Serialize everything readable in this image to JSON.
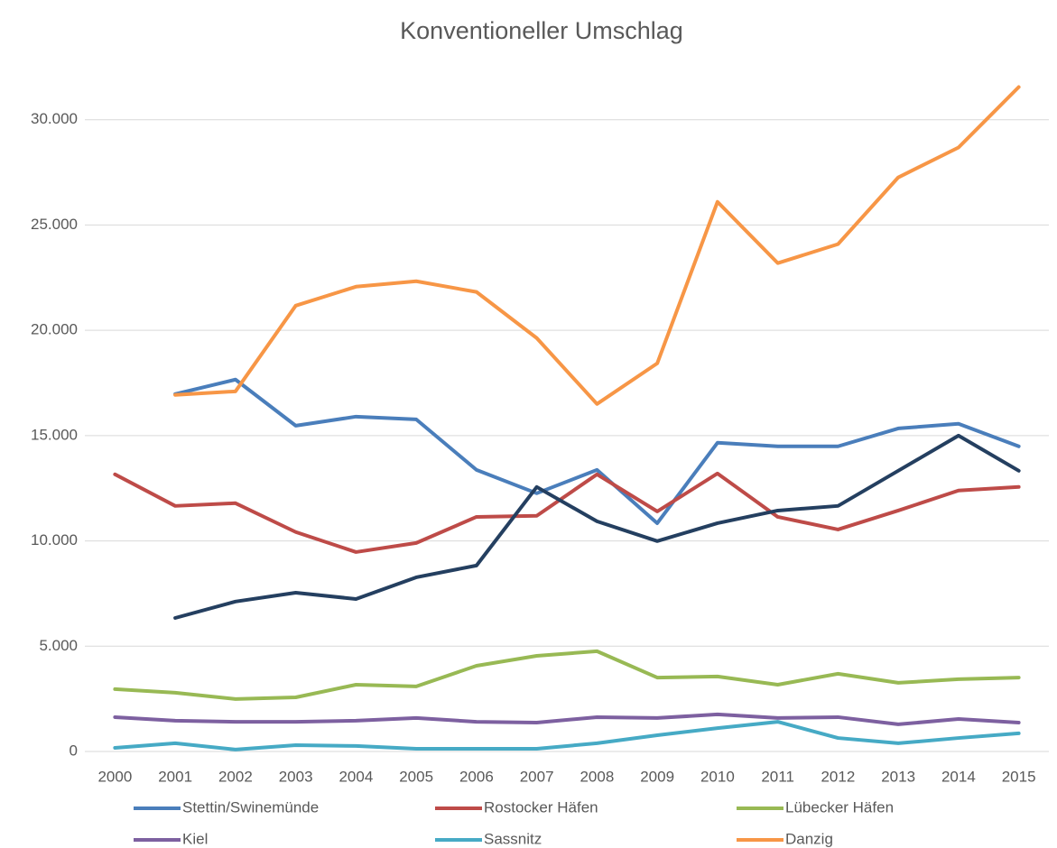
{
  "chart_data": {
    "type": "line",
    "title": "Konventioneller Umschlag",
    "categories": [
      "2000",
      "2001",
      "2002",
      "2003",
      "2004",
      "2005",
      "2006",
      "2007",
      "2008",
      "2009",
      "2010",
      "2011",
      "2012",
      "2013",
      "2014",
      "2015"
    ],
    "ylim": [
      0,
      32000
    ],
    "yticks": [
      0,
      {
        "value": 5000,
        "label": "5.000"
      },
      {
        "value": 10000,
        "label": "10.000"
      },
      {
        "value": 15000,
        "label": "15.000"
      },
      {
        "value": 20000,
        "label": "20.000"
      },
      {
        "value": 25000,
        "label": "25.000"
      },
      {
        "value": 30000,
        "label": "30.000"
      }
    ],
    "grid": true,
    "legend": "bottom",
    "series": [
      {
        "name": "Stettin/Swinemünde",
        "color": "#4a7ebb",
        "values": [
          null,
          16970,
          17660,
          15470,
          15900,
          15770,
          13370,
          12260,
          13370,
          10840,
          14660,
          14490,
          14490,
          15340,
          15560,
          14490
        ]
      },
      {
        "name": "Rostocker Häfen",
        "color": "#be4b48",
        "values": [
          13160,
          11660,
          11790,
          10420,
          9470,
          9900,
          11140,
          11190,
          13160,
          11400,
          13200,
          11140,
          10540,
          11440,
          12390,
          12560
        ]
      },
      {
        "name": "Lübecker Häfen",
        "color": "#98b954",
        "values": [
          2960,
          2790,
          2490,
          2570,
          3170,
          3090,
          4070,
          4540,
          4760,
          3510,
          3560,
          3170,
          3690,
          3260,
          3430,
          3510
        ]
      },
      {
        "name": "Kiel",
        "color": "#7d60a0",
        "values": [
          1630,
          1460,
          1410,
          1410,
          1460,
          1590,
          1410,
          1370,
          1630,
          1590,
          1760,
          1590,
          1630,
          1290,
          1540,
          1370
        ]
      },
      {
        "name": "Sassnitz",
        "color": "#46aac5",
        "values": [
          170,
          390,
          90,
          300,
          260,
          130,
          130,
          130,
          390,
          770,
          1110,
          1410,
          640,
          390,
          640,
          860
        ]
      },
      {
        "name": "Danzig",
        "color": "#f79646",
        "values": [
          null,
          16930,
          17100,
          21170,
          22070,
          22330,
          21820,
          19630,
          16500,
          18430,
          26100,
          23190,
          24090,
          27260,
          28680,
          31550
        ]
      },
      {
        "name": null,
        "color": "#243f60",
        "values": [
          null,
          6340,
          7120,
          7540,
          7240,
          8270,
          8830,
          12560,
          10930,
          9990,
          10840,
          11440,
          11660,
          13330,
          15000,
          13330
        ]
      }
    ]
  }
}
